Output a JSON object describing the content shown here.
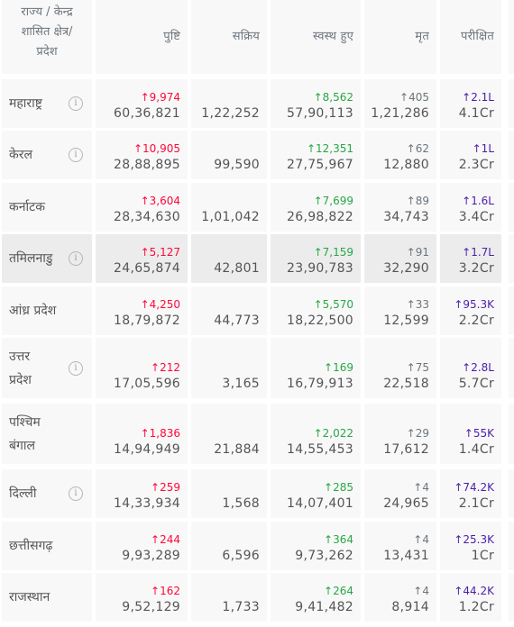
{
  "header": {
    "state_lines": [
      "राज्य / केन्द्र",
      "शासित क्षेत्र/",
      "प्रदेश"
    ],
    "confirmed": "पुष्टि",
    "active": "सक्रिय",
    "recovered": "स्वस्थ हुए",
    "deceased": "मृत",
    "tested": "परीक्षित"
  },
  "info_glyph": "i",
  "arrow": "↑",
  "rows": [
    {
      "state": [
        "महाराष्ट्र"
      ],
      "info": true,
      "confirmed_delta": "9,974",
      "confirmed": "60,36,821",
      "active": "1,22,252",
      "recovered_delta": "8,562",
      "recovered": "57,90,113",
      "deceased_delta": "405",
      "deceased": "1,21,286",
      "tested_delta": "2.1L",
      "tested": "4.1Cr"
    },
    {
      "state": [
        "केरल"
      ],
      "info": true,
      "confirmed_delta": "10,905",
      "confirmed": "28,88,895",
      "active": "99,590",
      "recovered_delta": "12,351",
      "recovered": "27,75,967",
      "deceased_delta": "62",
      "deceased": "12,880",
      "tested_delta": "1L",
      "tested": "2.3Cr"
    },
    {
      "state": [
        "कर्नाटक"
      ],
      "info": false,
      "confirmed_delta": "3,604",
      "confirmed": "28,34,630",
      "active": "1,01,042",
      "recovered_delta": "7,699",
      "recovered": "26,98,822",
      "deceased_delta": "89",
      "deceased": "34,743",
      "tested_delta": "1.6L",
      "tested": "3.4Cr"
    },
    {
      "state": [
        "तमिलनाडु"
      ],
      "info": true,
      "confirmed_delta": "5,127",
      "confirmed": "24,65,874",
      "active": "42,801",
      "recovered_delta": "7,159",
      "recovered": "23,90,783",
      "deceased_delta": "91",
      "deceased": "32,290",
      "tested_delta": "1.7L",
      "tested": "3.2Cr"
    },
    {
      "state": [
        "आंध्र प्रदेश"
      ],
      "info": false,
      "confirmed_delta": "4,250",
      "confirmed": "18,79,872",
      "active": "44,773",
      "recovered_delta": "5,570",
      "recovered": "18,22,500",
      "deceased_delta": "33",
      "deceased": "12,599",
      "tested_delta": "95.3K",
      "tested": "2.2Cr"
    },
    {
      "state": [
        "उत्तर",
        "प्रदेश"
      ],
      "info": true,
      "confirmed_delta": "212",
      "confirmed": "17,05,596",
      "active": "3,165",
      "recovered_delta": "169",
      "recovered": "16,79,913",
      "deceased_delta": "75",
      "deceased": "22,518",
      "tested_delta": "2.8L",
      "tested": "5.7Cr"
    },
    {
      "state": [
        "पश्चिम",
        "बंगाल"
      ],
      "info": false,
      "confirmed_delta": "1,836",
      "confirmed": "14,94,949",
      "active": "21,884",
      "recovered_delta": "2,022",
      "recovered": "14,55,453",
      "deceased_delta": "29",
      "deceased": "17,612",
      "tested_delta": "55K",
      "tested": "1.4Cr"
    },
    {
      "state": [
        "दिल्ली"
      ],
      "info": true,
      "confirmed_delta": "259",
      "confirmed": "14,33,934",
      "active": "1,568",
      "recovered_delta": "285",
      "recovered": "14,07,401",
      "deceased_delta": "4",
      "deceased": "24,965",
      "tested_delta": "74.2K",
      "tested": "2.1Cr"
    },
    {
      "state": [
        "छत्तीसगढ़"
      ],
      "info": false,
      "confirmed_delta": "244",
      "confirmed": "9,93,289",
      "active": "6,596",
      "recovered_delta": "364",
      "recovered": "9,73,262",
      "deceased_delta": "4",
      "deceased": "13,431",
      "tested_delta": "25.3K",
      "tested": "1Cr"
    },
    {
      "state": [
        "राजस्थान"
      ],
      "info": false,
      "confirmed_delta": "162",
      "confirmed": "9,52,129",
      "active": "1,733",
      "recovered_delta": "264",
      "recovered": "9,41,482",
      "deceased_delta": "4",
      "deceased": "8,914",
      "tested_delta": "44.2K",
      "tested": "1.2Cr"
    }
  ],
  "colors": {
    "confirmed": "#ff073a",
    "recovered": "#28a745",
    "deceased": "#6c757d",
    "tested": "#4b1eaa",
    "cell_bg": "#f8f8f8",
    "cell_bg_hover": "#ececec"
  }
}
